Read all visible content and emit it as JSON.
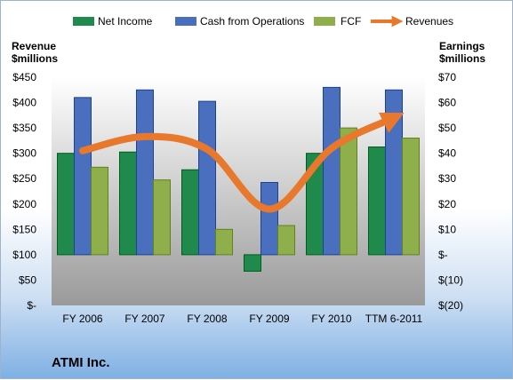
{
  "chart_data": {
    "type": "bar",
    "company": "ATMI Inc.",
    "categories": [
      "FY 2006",
      "FY 2007",
      "FY 2008",
      "FY 2009",
      "FY 2010",
      "TTM 6-2011"
    ],
    "left_axis": {
      "title_line1": "Revenue",
      "title_line2": "$millions",
      "ylim": [
        0,
        450
      ],
      "ticks": [
        0,
        50,
        100,
        150,
        200,
        250,
        300,
        350,
        400,
        450
      ],
      "tick_labels": [
        "$-",
        "$50",
        "$100",
        "$150",
        "$200",
        "$250",
        "$300",
        "$350",
        "$400",
        "$450"
      ]
    },
    "right_axis": {
      "title_line1": "Earnings",
      "title_line2": "$millions",
      "ylim": [
        -20,
        70
      ],
      "ticks": [
        -20,
        -10,
        0,
        10,
        20,
        30,
        40,
        50,
        60,
        70
      ],
      "tick_labels": [
        "$(20)",
        "$(10)",
        "$-",
        "$10",
        "$20",
        "$30",
        "$40",
        "$50",
        "$60",
        "$70"
      ]
    },
    "series": [
      {
        "name": "Net Income",
        "axis": "right",
        "kind": "bar",
        "color": "#1f8a4c",
        "values": [
          40,
          40.5,
          33.5,
          -6.5,
          40,
          42.5
        ]
      },
      {
        "name": "Cash from Operations",
        "axis": "right",
        "kind": "bar",
        "color": "#4a6fbe",
        "values": [
          62,
          65,
          60.5,
          28.5,
          66,
          65
        ]
      },
      {
        "name": "FCF",
        "axis": "right",
        "kind": "bar",
        "color": "#8fae4c",
        "values": [
          34.5,
          29.5,
          10,
          11.5,
          50,
          46
        ]
      },
      {
        "name": "Revenues",
        "axis": "left",
        "kind": "line",
        "color": "#e8782c",
        "values": [
          305,
          333,
          308,
          190,
          310,
          370
        ]
      }
    ],
    "legend_position": "top",
    "grid": false,
    "colors": {
      "plot_top": "#ffffff",
      "plot_bottom": "#9a9a9a",
      "frame_bottom": "#7fb0e4"
    }
  }
}
